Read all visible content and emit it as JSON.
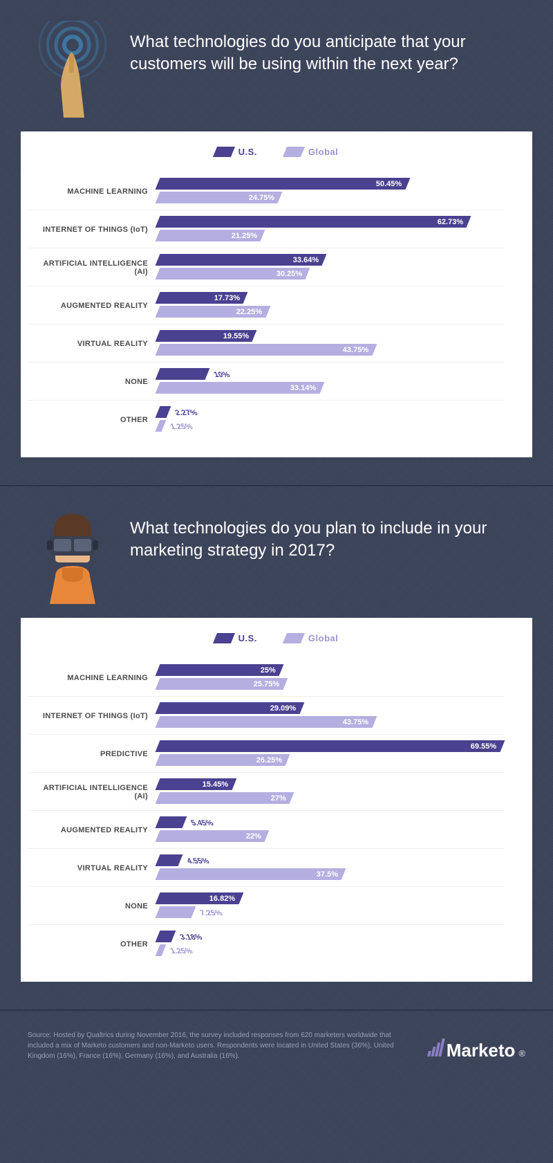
{
  "colors": {
    "us": "#4a4190",
    "global": "#b5aee0",
    "us_text": "#4a4190",
    "global_text": "#9c93ce"
  },
  "max_pct": 70,
  "panels": [
    {
      "icon": "hand",
      "title": "What technologies do you anticipate that your customers will be using within the next year?",
      "legend": {
        "a": "U.S.",
        "b": "Global"
      },
      "rows": [
        {
          "label": "MACHINE LEARNING",
          "us": 50.45,
          "global": 24.75
        },
        {
          "label": "INTERNET OF THINGS (IoT)",
          "us": 62.73,
          "global": 21.25
        },
        {
          "label": "ARTIFICIAL INTELLIGENCE (AI)",
          "us": 33.64,
          "global": 30.25
        },
        {
          "label": "AUGMENTED REALITY",
          "us": 17.73,
          "global": 22.25
        },
        {
          "label": "VIRTUAL REALITY",
          "us": 19.55,
          "global": 43.75
        },
        {
          "label": "NONE",
          "us": 10,
          "global": 33.14
        },
        {
          "label": "OTHER",
          "us": 2.27,
          "global": 1.25
        }
      ]
    },
    {
      "icon": "vr",
      "title": "What technologies do you plan to include in your marketing strategy in 2017?",
      "legend": {
        "a": "U.S.",
        "b": "Global"
      },
      "rows": [
        {
          "label": "MACHINE LEARNING",
          "us": 25,
          "global": 25.75
        },
        {
          "label": "INTERNET OF THINGS (IoT)",
          "us": 29.09,
          "global": 43.75
        },
        {
          "label": "PREDICTIVE",
          "us": 69.55,
          "global": 26.25
        },
        {
          "label": "ARTIFICIAL INTELLIGENCE (AI)",
          "us": 15.45,
          "global": 27
        },
        {
          "label": "AUGMENTED REALITY",
          "us": 5.45,
          "global": 22
        },
        {
          "label": "VIRTUAL REALITY",
          "us": 4.55,
          "global": 37.5
        },
        {
          "label": "NONE",
          "us": 16.82,
          "global": 7.25
        },
        {
          "label": "OTHER",
          "us": 3.18,
          "global": 1.25
        }
      ]
    }
  ],
  "source": "Source: Hosted by Qualtrics during November 2016, the survey included responses from 620 marketers worldwide that included a mix of Marketo customers and non-Marketo users. Respondents were located in United States (36%), United Kingdom (16%), France (16%), Germany (16%), and Australia (16%).",
  "brand": "Marketo"
}
